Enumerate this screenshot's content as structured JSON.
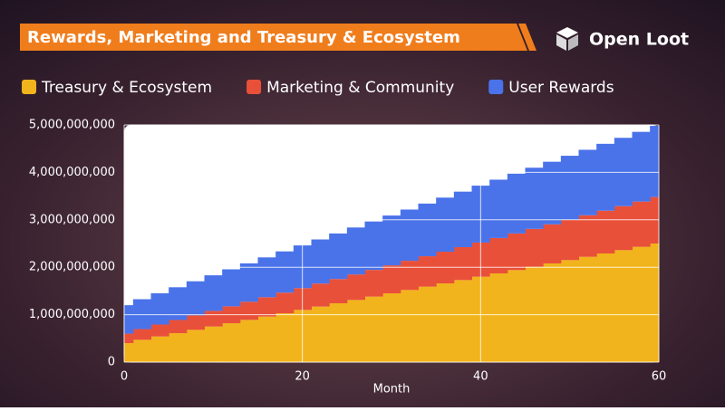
{
  "chart_data": {
    "type": "stacked-area",
    "title": "Rewards, Marketing and Treasury & Ecosystem",
    "brand": "Open Loot",
    "x_label": "Month",
    "x": [
      0,
      2,
      4,
      6,
      8,
      10,
      12,
      14,
      16,
      18,
      20,
      22,
      24,
      26,
      28,
      30,
      32,
      34,
      36,
      38,
      40,
      42,
      44,
      46,
      48,
      50,
      52,
      54,
      56,
      58,
      60
    ],
    "series": [
      {
        "name": "Treasury & Ecosystem",
        "color": "#f2b41c",
        "values": [
          400000000.0,
          470000000.0,
          540000000.0,
          610000000.0,
          680000000.0,
          750000000.0,
          820000000.0,
          890000000.0,
          960000000.0,
          1030000000.0,
          1100000000.0,
          1170000000.0,
          1240000000.0,
          1310000000.0,
          1380000000.0,
          1450000000.0,
          1520000000.0,
          1590000000.0,
          1660000000.0,
          1730000000.0,
          1800000000.0,
          1870000000.0,
          1940000000.0,
          2010000000.0,
          2080000000.0,
          2150000000.0,
          2220000000.0,
          2290000000.0,
          2360000000.0,
          2430000000.0,
          2500000000.0
        ]
      },
      {
        "name": "Marketing & Community",
        "color": "#e9503a",
        "values": [
          200000000.0,
          226000000.0,
          252000000.0,
          278000000.0,
          304000000.0,
          330000000.0,
          356000000.0,
          382000000.0,
          408000000.0,
          434000000.0,
          460000000.0,
          486000000.0,
          512000000.0,
          538000000.0,
          564000000.0,
          590000000.0,
          616000000.0,
          642000000.0,
          668000000.0,
          694000000.0,
          720000000.0,
          746000000.0,
          772000000.0,
          798000000.0,
          824000000.0,
          850000000.0,
          876000000.0,
          902000000.0,
          928000000.0,
          954000000.0,
          980000000.0
        ]
      },
      {
        "name": "User Rewards",
        "color": "#4a73ea",
        "values": [
          600000000.0,
          630000000.0,
          660000000.0,
          690000000.0,
          720000000.0,
          750000000.0,
          780000000.0,
          810000000.0,
          840000000.0,
          870000000.0,
          900000000.0,
          930000000.0,
          960000000.0,
          990000000.0,
          1020000000.0,
          1050000000.0,
          1080000000.0,
          1110000000.0,
          1140000000.0,
          1170000000.0,
          1200000000.0,
          1230000000.0,
          1260000000.0,
          1290000000.0,
          1320000000.0,
          1350000000.0,
          1380000000.0,
          1410000000.0,
          1440000000.0,
          1470000000.0,
          1500000000.0
        ]
      }
    ],
    "xlim": [
      0,
      60
    ],
    "xticks": [
      0,
      20,
      40,
      60
    ],
    "ylim": [
      0,
      5000000000.0
    ],
    "yticks": [
      0,
      {
        "value": 1000000000.0,
        "label": "1,000,000,000"
      },
      {
        "value": 2000000000.0,
        "label": "2,000,000,000"
      },
      {
        "value": 3000000000.0,
        "label": "3,000,000,000"
      },
      {
        "value": 4000000000.0,
        "label": "4,000,000,000"
      },
      {
        "value": 5000000000.0,
        "label": "5,000,000,000"
      }
    ],
    "grid": true
  }
}
